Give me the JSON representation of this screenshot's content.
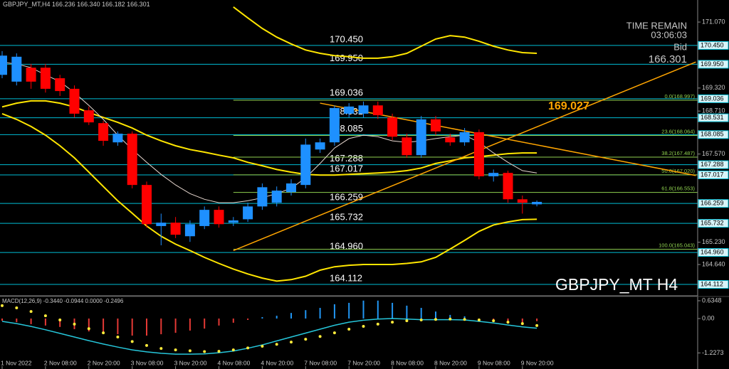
{
  "chart_data": [
    {
      "type": "candlestick",
      "title": "GBPJPY_MT,H4",
      "ohlc_text": "166.236 166.340 166.182 166.301",
      "time_remain_label": "TIME REMAIN",
      "time_remain": "03:06:03",
      "bid_label": "Bid",
      "watermark": "GBPJPY_MT H4",
      "annotation": "169.027",
      "bull_color": "#1e90ff",
      "bear_color": "#ff0000",
      "x": [
        "1 Nov 2022",
        null,
        null,
        "2 Nov 08:00",
        null,
        null,
        "2 Nov 20:00",
        null,
        null,
        "3 Nov 08:00",
        null,
        null,
        "3 Nov 20:00",
        null,
        null,
        "4 Nov 08:00",
        null,
        null,
        "4 Nov 20:00",
        null,
        null,
        "7 Nov 08:00",
        null,
        null,
        "7 Nov 20:00",
        null,
        null,
        "8 Nov 08:00",
        null,
        null,
        "8 Nov 20:00",
        null,
        null,
        "9 Nov 08:00",
        null,
        null,
        "9 Nov 20:00",
        null
      ],
      "open": [
        169.67,
        169.49,
        169.86,
        169.86,
        169.58,
        169.3,
        168.73,
        168.39,
        167.88,
        168.11,
        166.75,
        165.66,
        165.75,
        165.39,
        165.66,
        166.09,
        165.75,
        165.84,
        166.18,
        166.28,
        166.56,
        166.75,
        167.69,
        167.88,
        168.64,
        168.64,
        168.86,
        168.54,
        168.01,
        167.54,
        168.49,
        168.01,
        167.88,
        168.15,
        166.98,
        167.07,
        166.37,
        166.236
      ],
      "high": [
        170.3,
        170.24,
        169.96,
        169.96,
        169.67,
        169.39,
        168.83,
        168.45,
        168.17,
        168.17,
        166.84,
        165.99,
        165.9,
        165.81,
        166.18,
        166.18,
        165.9,
        166.28,
        166.79,
        166.71,
        166.9,
        167.98,
        167.98,
        168.86,
        168.92,
        168.96,
        168.96,
        168.64,
        168.11,
        168.58,
        168.58,
        168.11,
        168.26,
        168.22,
        167.16,
        167.13,
        166.47,
        166.34
      ],
      "low": [
        169.58,
        169.39,
        169.3,
        169.2,
        169.11,
        168.54,
        168.34,
        167.79,
        167.79,
        166.66,
        165.62,
        165.15,
        165.34,
        165.24,
        165.58,
        165.62,
        165.66,
        165.77,
        166.09,
        166.18,
        166.47,
        166.66,
        167.6,
        167.79,
        168.54,
        168.54,
        168.5,
        167.94,
        167.47,
        167.47,
        168.07,
        167.79,
        167.79,
        166.9,
        166.84,
        166.28,
        165.99,
        166.182
      ],
      "close": [
        170.18,
        170.15,
        169.49,
        169.3,
        169.24,
        168.64,
        168.41,
        167.92,
        168.11,
        166.75,
        165.71,
        165.75,
        165.43,
        165.71,
        166.09,
        165.71,
        165.81,
        166.18,
        166.69,
        166.6,
        166.79,
        167.82,
        167.88,
        168.79,
        168.83,
        168.86,
        168.6,
        168.03,
        167.54,
        168.49,
        168.17,
        167.88,
        168.15,
        166.98,
        167.07,
        166.37,
        166.28,
        166.301
      ],
      "overlays": [
        {
          "color": "#ffe600",
          "values": [
            null,
            null,
            null,
            null,
            null,
            null,
            null,
            null,
            null,
            null,
            null,
            null,
            null,
            null,
            null,
            null,
            171.47,
            171.18,
            170.9,
            170.67,
            170.49,
            170.33,
            170.24,
            170.18,
            170.15,
            170.11,
            170.11,
            170.15,
            170.24,
            170.43,
            170.62,
            170.71,
            170.67,
            170.56,
            170.43,
            170.33,
            170.26,
            170.24
          ]
        },
        {
          "color": "#ffe600",
          "values": [
            168.82,
            168.92,
            168.98,
            168.98,
            168.92,
            168.82,
            168.67,
            168.54,
            168.41,
            168.26,
            168.07,
            167.92,
            167.79,
            167.69,
            167.62,
            167.54,
            167.47,
            167.35,
            167.26,
            167.16,
            167.09,
            167.03,
            167.01,
            167.01,
            167.03,
            167.05,
            167.07,
            167.09,
            167.13,
            167.2,
            167.32,
            167.39,
            167.47,
            167.5,
            167.54,
            167.58,
            167.6,
            167.6
          ]
        },
        {
          "color": "#ffe600",
          "values": [
            168.64,
            168.49,
            168.3,
            168.07,
            167.79,
            167.47,
            167.09,
            166.71,
            166.33,
            166.0,
            165.66,
            165.39,
            165.18,
            165.01,
            164.83,
            164.67,
            164.52,
            164.39,
            164.28,
            164.2,
            164.24,
            164.33,
            164.49,
            164.58,
            164.62,
            164.64,
            164.64,
            164.64,
            164.67,
            164.71,
            164.83,
            165.05,
            165.28,
            165.52,
            165.69,
            165.77,
            165.83,
            165.84
          ]
        },
        {
          "color": "#e8d8d0",
          "values": [
            170.0,
            169.96,
            169.86,
            169.67,
            169.49,
            169.2,
            168.86,
            168.49,
            168.07,
            167.69,
            167.35,
            167.03,
            166.75,
            166.52,
            166.37,
            166.28,
            166.28,
            166.33,
            166.41,
            166.52,
            166.66,
            166.94,
            167.32,
            167.73,
            167.98,
            168.07,
            168.03,
            167.92,
            167.88,
            167.92,
            167.98,
            168.03,
            168.07,
            167.88,
            167.6,
            167.35,
            167.13,
            167.07
          ]
        }
      ],
      "trendlines": [
        {
          "color": "#ffa500",
          "x": [
            16,
            48
          ],
          "y": [
            165.01,
            170.01
          ]
        },
        {
          "color": "#ffa500",
          "x": [
            22,
            48
          ],
          "y": [
            168.92,
            167.0
          ]
        }
      ],
      "level_color": "#00bcd4",
      "levels": [
        {
          "value": 170.45,
          "label": "170.450"
        },
        {
          "value": 169.95,
          "label": "169.950"
        },
        {
          "value": 169.036,
          "label": "169.036"
        },
        {
          "value": 168.531,
          "label": "168.531"
        },
        {
          "value": 168.085,
          "label": "168.085"
        },
        {
          "value": 167.288,
          "label": "167.288"
        },
        {
          "value": 167.017,
          "label": "167.017"
        },
        {
          "value": 166.259,
          "label": "166.259"
        },
        {
          "value": 165.732,
          "label": "165.732"
        },
        {
          "value": 164.96,
          "label": "164.960"
        },
        {
          "value": 164.112,
          "label": "164.112"
        }
      ],
      "fib_color": "#8fd14f",
      "fib_levels": [
        {
          "value": 168.997,
          "label": "0.0(168.997)"
        },
        {
          "value": 168.064,
          "label": "23.6(168.064)"
        },
        {
          "value": 167.487,
          "label": "38.2(167.487)"
        },
        {
          "value": 167.02,
          "label": "50.0(167.020)"
        },
        {
          "value": 166.553,
          "label": "61.8(166.553)"
        },
        {
          "value": 165.043,
          "label": "100.0(165.043)"
        }
      ],
      "ylim": [
        163.83,
        171.655
      ],
      "yticks": [
        {
          "value": 171.07,
          "label": "171.070"
        },
        {
          "value": 169.32,
          "label": "169.320"
        },
        {
          "value": 168.71,
          "label": "168.710"
        },
        {
          "value": 167.57,
          "label": "167.570"
        },
        {
          "value": 165.23,
          "label": "165.230"
        },
        {
          "value": 164.64,
          "label": "164.640"
        }
      ]
    },
    {
      "type": "macd",
      "title": "MACD(12,26,9) -0.3440 -0.0944 0.0000 -0.2496",
      "histogram": {
        "up_color": "#2196f3",
        "down_color": "#e53935",
        "values": [
          -0.08,
          -0.13,
          -0.2,
          -0.25,
          -0.3,
          -0.38,
          -0.46,
          -0.51,
          -0.56,
          -0.61,
          -0.61,
          -0.56,
          -0.51,
          -0.43,
          -0.36,
          -0.25,
          -0.15,
          -0.05,
          0.05,
          0.1,
          0.2,
          0.3,
          0.38,
          0.51,
          0.56,
          0.64,
          0.64,
          0.56,
          0.46,
          0.38,
          0.25,
          0.13,
          0.08,
          -0.05,
          -0.1,
          -0.13,
          -0.15,
          -0.0944
        ]
      },
      "series": [
        {
          "color": "#26c6da",
          "style": "line",
          "values": [
            -0.1,
            -0.18,
            -0.28,
            -0.4,
            -0.53,
            -0.66,
            -0.79,
            -0.91,
            -1.02,
            -1.12,
            -1.19,
            -1.24,
            -1.27,
            -1.27,
            -1.26,
            -1.22,
            -1.16,
            -1.06,
            -0.94,
            -0.8,
            -0.66,
            -0.52,
            -0.38,
            -0.24,
            -0.13,
            -0.06,
            -0.02,
            0.0,
            -0.02,
            -0.04,
            -0.04,
            -0.04,
            -0.05,
            -0.1,
            -0.16,
            -0.23,
            -0.3,
            -0.344
          ]
        },
        {
          "color": "#ffeb3b",
          "style": "dots",
          "values": [
            0.46,
            0.38,
            0.25,
            0.1,
            -0.05,
            -0.2,
            -0.36,
            -0.51,
            -0.66,
            -0.82,
            -0.96,
            -1.07,
            -1.12,
            -1.15,
            -1.18,
            -1.17,
            -1.12,
            -1.05,
            -0.99,
            -0.92,
            -0.84,
            -0.74,
            -0.64,
            -0.51,
            -0.38,
            -0.28,
            -0.2,
            -0.13,
            -0.08,
            -0.05,
            -0.03,
            -0.02,
            -0.03,
            -0.05,
            -0.08,
            -0.13,
            -0.18,
            -0.2496
          ]
        }
      ],
      "ylim": [
        -1.7,
        0.762
      ],
      "yticks": [
        {
          "value": 0.6348,
          "label": "0.6348"
        },
        {
          "value": 0,
          "label": "0.00"
        },
        {
          "value": -1.2273,
          "label": "-1.2273"
        }
      ]
    }
  ]
}
